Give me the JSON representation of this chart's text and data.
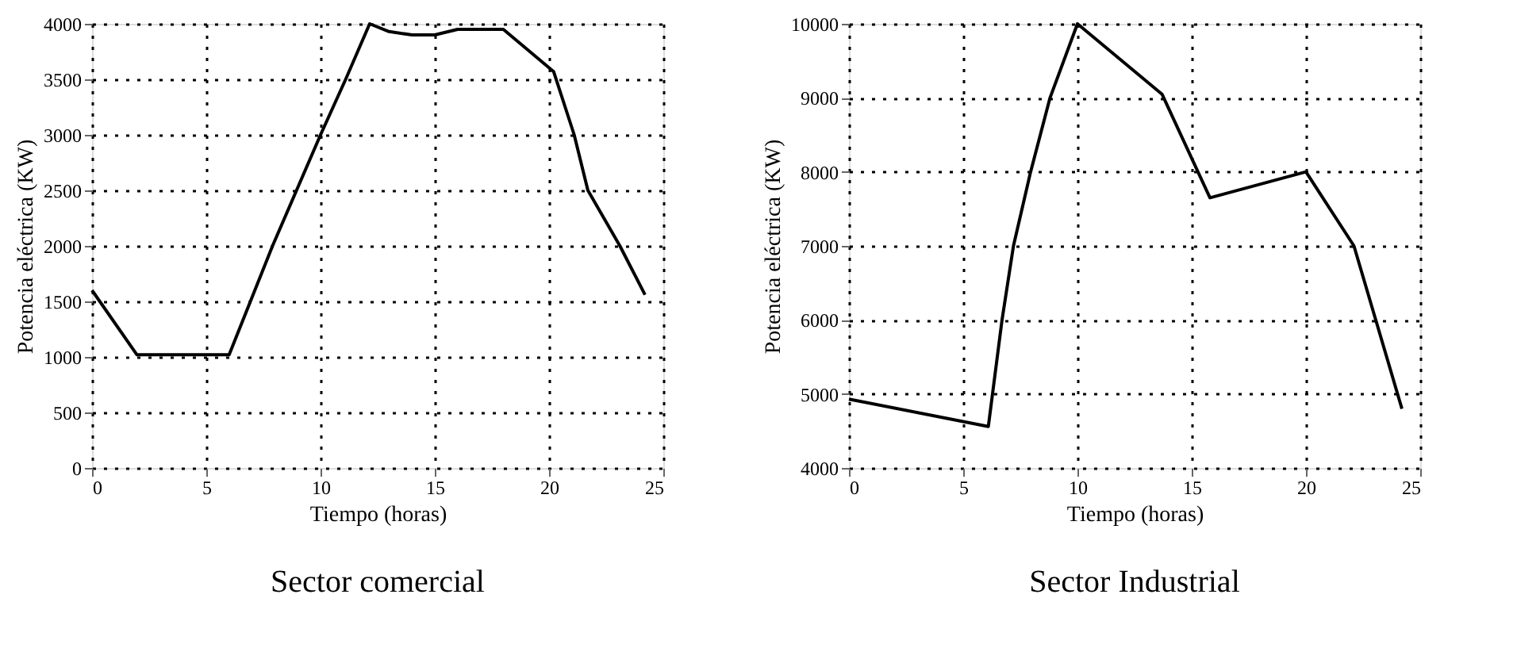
{
  "chart_data": [
    {
      "type": "line",
      "title": "Sector comercial",
      "xlabel": "Tiempo (horas)",
      "ylabel": "Potencia eléctrica (KW)",
      "x": [
        0,
        1.96,
        6.0,
        7.9,
        10.0,
        11.1,
        12.15,
        13,
        14,
        15,
        16,
        18,
        20.2,
        21.1,
        21.7,
        23.1,
        24.2
      ],
      "series": [
        {
          "color": "#000000",
          "values": [
            1600,
            1020,
            1020,
            2000,
            3000,
            3500,
            4000,
            3930,
            3900,
            3900,
            3950,
            3950,
            3570,
            3000,
            2500,
            2000,
            1560
          ]
        }
      ],
      "xlim": [
        0,
        25
      ],
      "xticks": [
        0,
        5,
        10,
        15,
        20,
        25
      ],
      "ylim": [
        0,
        4000
      ],
      "yticks": [
        0,
        500,
        1000,
        1500,
        2000,
        2500,
        3000,
        3500,
        4000
      ],
      "grid": true,
      "marker": "none",
      "line_style": "solid"
    },
    {
      "type": "line",
      "title": "Sector Industrial",
      "xlabel": "Tiempo (horas)",
      "ylabel": "Potencia eléctrica (KW)",
      "x": [
        0,
        6.1,
        6.7,
        7.2,
        7.95,
        8.8,
        10.0,
        13.7,
        15.8,
        20.0,
        22.1,
        24.2
      ],
      "series": [
        {
          "color": "#000000",
          "values": [
            4930,
            4560,
            6000,
            7000,
            8000,
            9000,
            10000,
            9050,
            7650,
            8000,
            7000,
            4800
          ]
        }
      ],
      "xlim": [
        0,
        25
      ],
      "xticks": [
        0,
        5,
        10,
        15,
        20,
        25
      ],
      "ylim": [
        4000,
        10000
      ],
      "yticks": [
        4000,
        5000,
        6000,
        7000,
        8000,
        9000,
        10000
      ],
      "grid": true,
      "marker": "none",
      "line_style": "solid"
    }
  ]
}
